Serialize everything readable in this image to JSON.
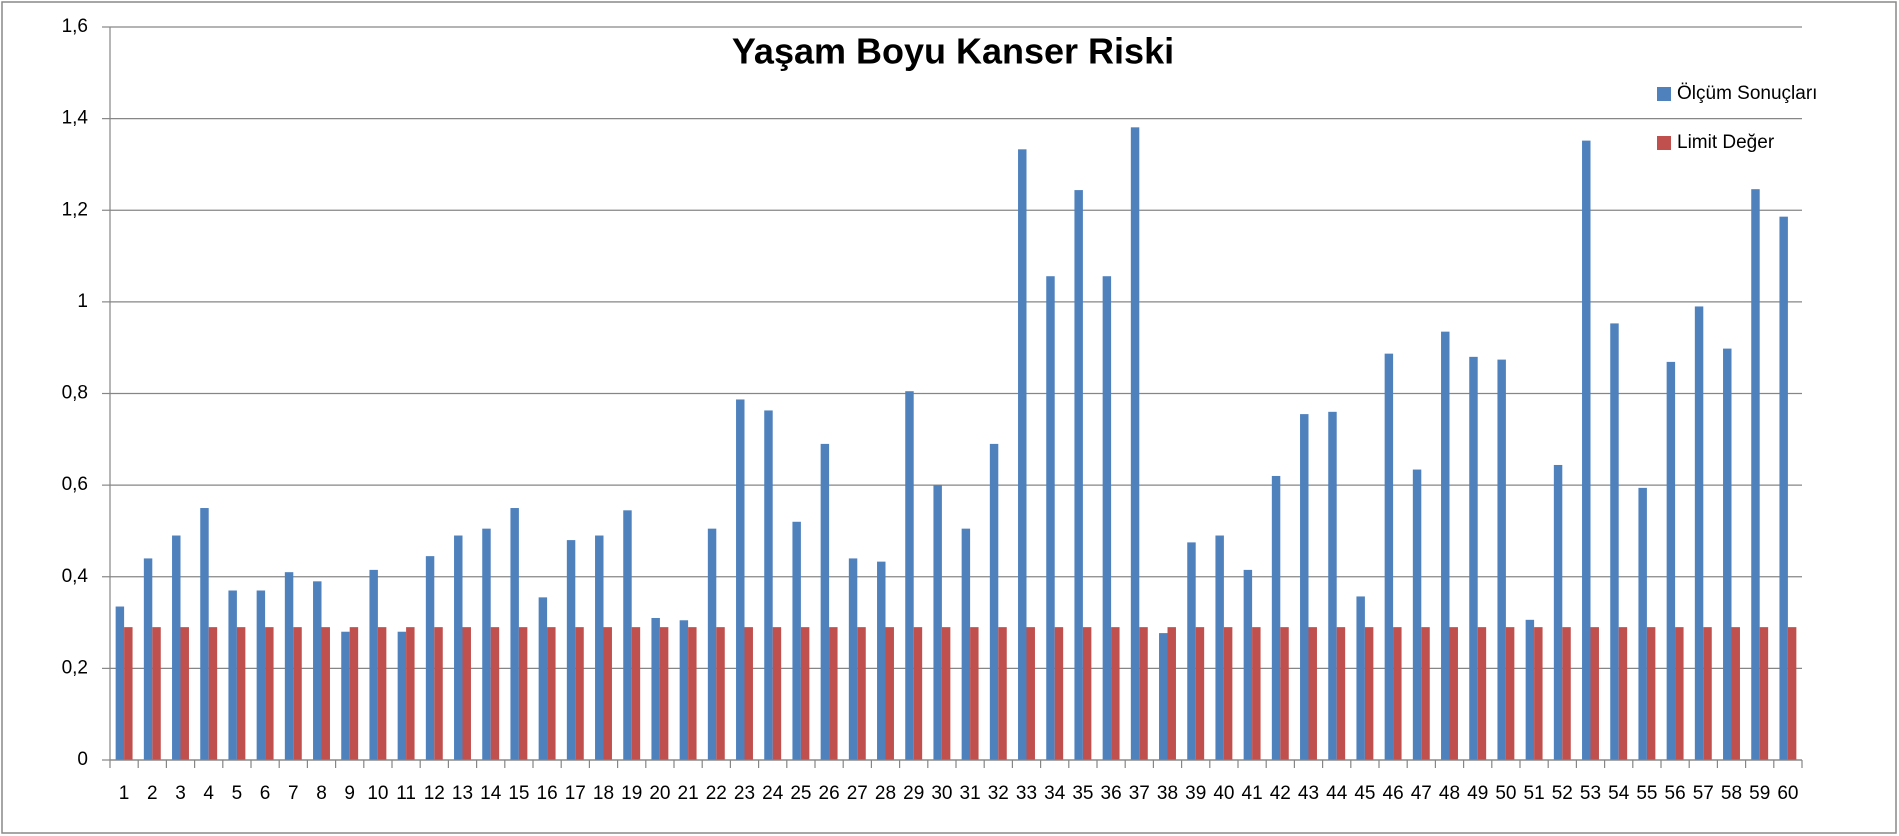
{
  "chart_data": {
    "type": "bar",
    "title": "Yaşam Boyu Kanser Riski",
    "categories": [
      "1",
      "2",
      "3",
      "4",
      "5",
      "6",
      "7",
      "8",
      "9",
      "10",
      "11",
      "12",
      "13",
      "14",
      "15",
      "16",
      "17",
      "18",
      "19",
      "20",
      "21",
      "22",
      "23",
      "24",
      "25",
      "26",
      "27",
      "28",
      "29",
      "30",
      "31",
      "32",
      "33",
      "34",
      "35",
      "36",
      "37",
      "38",
      "39",
      "40",
      "41",
      "42",
      "43",
      "44",
      "45",
      "46",
      "47",
      "48",
      "49",
      "50",
      "51",
      "52",
      "53",
      "54",
      "55",
      "56",
      "57",
      "58",
      "59",
      "60"
    ],
    "series": [
      {
        "name": "Ölçüm Sonuçları",
        "color": "#4f81bd",
        "values": [
          0.335,
          0.44,
          0.49,
          0.55,
          0.37,
          0.37,
          0.41,
          0.39,
          0.28,
          0.415,
          0.28,
          0.445,
          0.49,
          0.505,
          0.55,
          0.355,
          0.48,
          0.49,
          0.545,
          0.31,
          0.305,
          0.505,
          0.787,
          0.763,
          0.52,
          0.69,
          0.44,
          0.433,
          0.805,
          0.6,
          0.505,
          0.69,
          1.333,
          1.056,
          1.244,
          1.056,
          1.381,
          0.277,
          0.475,
          0.49,
          0.415,
          0.62,
          0.755,
          0.76,
          0.357,
          0.887,
          0.634,
          0.935,
          0.88,
          0.874,
          0.306,
          0.644,
          1.352,
          0.953,
          0.594,
          0.869,
          0.99,
          0.898,
          1.246,
          1.186
        ]
      },
      {
        "name": "Limit Değer",
        "color": "#c0504d",
        "values": [
          0.29,
          0.29,
          0.29,
          0.29,
          0.29,
          0.29,
          0.29,
          0.29,
          0.29,
          0.29,
          0.29,
          0.29,
          0.29,
          0.29,
          0.29,
          0.29,
          0.29,
          0.29,
          0.29,
          0.29,
          0.29,
          0.29,
          0.29,
          0.29,
          0.29,
          0.29,
          0.29,
          0.29,
          0.29,
          0.29,
          0.29,
          0.29,
          0.29,
          0.29,
          0.29,
          0.29,
          0.29,
          0.29,
          0.29,
          0.29,
          0.29,
          0.29,
          0.29,
          0.29,
          0.29,
          0.29,
          0.29,
          0.29,
          0.29,
          0.29,
          0.29,
          0.29,
          0.29,
          0.29,
          0.29,
          0.29,
          0.29,
          0.29,
          0.29,
          0.29
        ]
      }
    ],
    "ylim": [
      0,
      1.6
    ],
    "yticks": [
      0,
      {
        "value": 0.2,
        "label": "0,2"
      },
      {
        "value": 0.4,
        "label": "0,4"
      },
      {
        "value": 0.6,
        "label": "0,6"
      },
      {
        "value": 0.8,
        "label": "0,8"
      },
      1,
      {
        "value": 1.2,
        "label": "1,2"
      },
      {
        "value": 1.4,
        "label": "1,4"
      },
      {
        "value": 1.6,
        "label": "1,6"
      }
    ],
    "grid": true,
    "legend": "right"
  }
}
